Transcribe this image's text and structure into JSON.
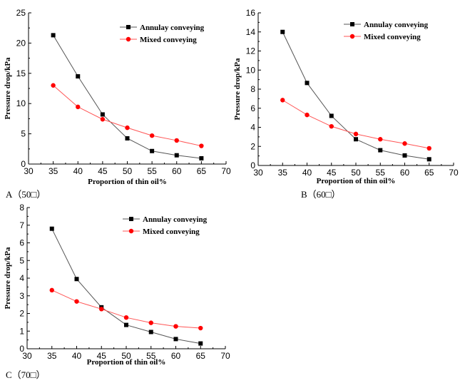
{
  "chart_data": [
    {
      "type": "line",
      "panel": "A",
      "caption": "A（50□）",
      "xlabel": "Proportion of thin oil%",
      "ylabel": "Pressure drop/kPa",
      "xlim": [
        30,
        70
      ],
      "ylim": [
        0,
        25
      ],
      "xticks": [
        30,
        35,
        40,
        45,
        50,
        55,
        60,
        65,
        70
      ],
      "yticks": [
        0,
        5,
        10,
        15,
        20,
        25
      ],
      "x": [
        35,
        40,
        45,
        50,
        55,
        60,
        65
      ],
      "series": [
        {
          "name": "Annulay conveying",
          "color": "#000000",
          "line_color": "#555555",
          "marker": "square",
          "values": [
            21.3,
            14.5,
            8.2,
            4.25,
            2.15,
            1.45,
            0.95
          ]
        },
        {
          "name": "Mixed conveying",
          "color": "#ff0000",
          "line_color": "#ff5555",
          "marker": "circle",
          "values": [
            13.0,
            9.45,
            7.4,
            6.0,
            4.7,
            3.9,
            3.0
          ]
        }
      ],
      "legend": "top-right",
      "grid": false
    },
    {
      "type": "line",
      "panel": "B",
      "caption": "B（60□）",
      "xlabel": "Proportion of thin oil%",
      "ylabel": "Pressure drop/kPa",
      "xlim": [
        30,
        70
      ],
      "ylim": [
        0,
        16
      ],
      "xticks": [
        30,
        35,
        40,
        45,
        50,
        55,
        60,
        65,
        70
      ],
      "yticks": [
        0,
        2,
        4,
        6,
        8,
        10,
        12,
        14,
        16
      ],
      "x": [
        35,
        40,
        45,
        50,
        55,
        60,
        65
      ],
      "series": [
        {
          "name": "Annulay conveying",
          "color": "#000000",
          "line_color": "#555555",
          "marker": "square",
          "values": [
            14.0,
            8.65,
            5.2,
            2.75,
            1.6,
            1.05,
            0.65
          ]
        },
        {
          "name": "Mixed conveying",
          "color": "#ff0000",
          "line_color": "#ff5555",
          "marker": "circle",
          "values": [
            6.85,
            5.3,
            4.1,
            3.3,
            2.75,
            2.3,
            1.8
          ]
        }
      ],
      "legend": "top-right",
      "grid": false
    },
    {
      "type": "line",
      "panel": "C",
      "caption": "C（70□）",
      "xlabel": "Proportion of thin oil%",
      "ylabel": "Pressure drop/kPa",
      "xlim": [
        30,
        70
      ],
      "ylim": [
        0,
        8
      ],
      "xticks": [
        30,
        35,
        40,
        45,
        50,
        55,
        60,
        65,
        70
      ],
      "yticks": [
        0,
        1,
        2,
        3,
        4,
        5,
        6,
        7,
        8
      ],
      "x": [
        35,
        40,
        45,
        50,
        55,
        60,
        65
      ],
      "series": [
        {
          "name": "Annulay conveying",
          "color": "#000000",
          "line_color": "#555555",
          "marker": "square",
          "values": [
            6.8,
            3.95,
            2.35,
            1.35,
            0.95,
            0.55,
            0.3
          ]
        },
        {
          "name": "Mixed conveying",
          "color": "#ff0000",
          "line_color": "#ff5555",
          "marker": "circle",
          "values": [
            3.32,
            2.68,
            2.25,
            1.77,
            1.47,
            1.27,
            1.17
          ]
        }
      ],
      "legend": "top-right",
      "grid": false
    }
  ]
}
